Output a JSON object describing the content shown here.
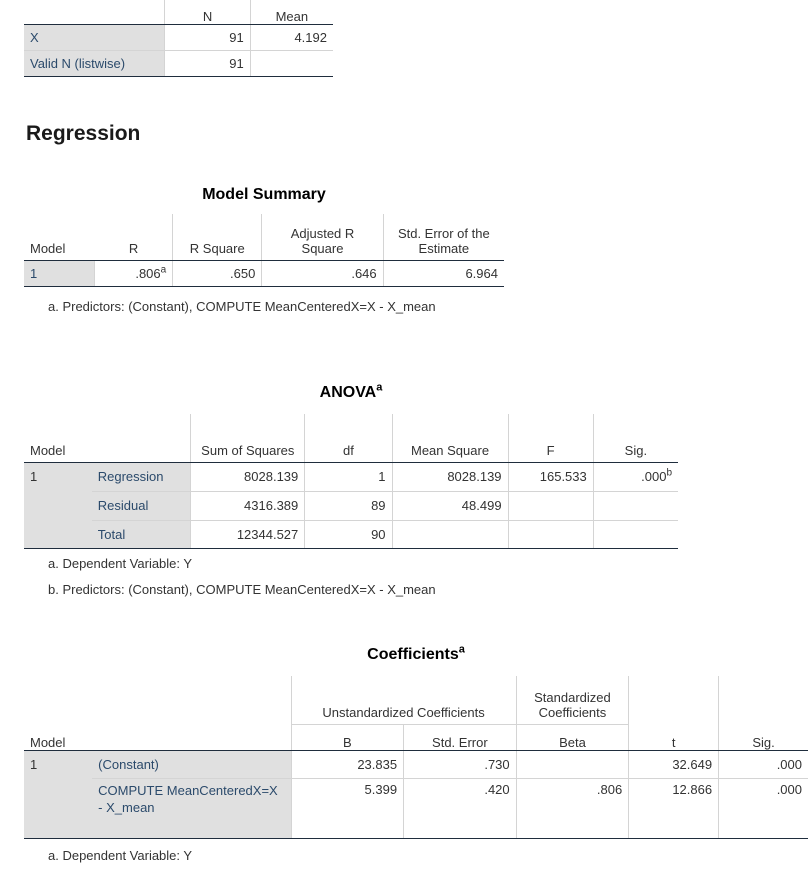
{
  "descriptives": {
    "headers": [
      "N",
      "Mean"
    ],
    "rows": [
      {
        "label": "X",
        "n": "91",
        "mean": "4.192"
      },
      {
        "label": "Valid N (listwise)",
        "n": "91",
        "mean": ""
      }
    ]
  },
  "section_title": "Regression",
  "model_summary": {
    "title": "Model Summary",
    "headers": {
      "model": "Model",
      "r": "R",
      "r_square": "R Square",
      "adj_r_square": "Adjusted R Square",
      "std_err": "Std. Error of the Estimate"
    },
    "row": {
      "model": "1",
      "r": ".806",
      "r_sup": "a",
      "r_square": ".650",
      "adj_r_square": ".646",
      "std_err": "6.964"
    },
    "footnote": "a. Predictors: (Constant), COMPUTE MeanCenteredX=X - X_mean"
  },
  "anova": {
    "title": "ANOVA",
    "title_sup": "a",
    "headers": {
      "model": "Model",
      "ss": "Sum of Squares",
      "df": "df",
      "ms": "Mean Square",
      "f": "F",
      "sig": "Sig."
    },
    "model": "1",
    "rows": [
      {
        "label": "Regression",
        "ss": "8028.139",
        "df": "1",
        "ms": "8028.139",
        "f": "165.533",
        "sig": ".000",
        "sig_sup": "b"
      },
      {
        "label": "Residual",
        "ss": "4316.389",
        "df": "89",
        "ms": "48.499",
        "f": "",
        "sig": "",
        "sig_sup": ""
      },
      {
        "label": "Total",
        "ss": "12344.527",
        "df": "90",
        "ms": "",
        "f": "",
        "sig": "",
        "sig_sup": ""
      }
    ],
    "footnotes": [
      "a. Dependent Variable: Y",
      "b. Predictors: (Constant), COMPUTE MeanCenteredX=X - X_mean"
    ]
  },
  "coefficients": {
    "title": "Coefficients",
    "title_sup": "a",
    "headers": {
      "unstd": "Unstandardized Coefficients",
      "std": "Standardized Coefficients",
      "model": "Model",
      "b": "B",
      "se": "Std. Error",
      "beta": "Beta",
      "t": "t",
      "sig": "Sig."
    },
    "model": "1",
    "rows": [
      {
        "label": "(Constant)",
        "b": "23.835",
        "se": ".730",
        "beta": "",
        "t": "32.649",
        "sig": ".000"
      },
      {
        "label": "COMPUTE MeanCenteredX=X - X_mean",
        "b": "5.399",
        "se": ".420",
        "beta": ".806",
        "t": "12.866",
        "sig": ".000"
      }
    ],
    "footnote": "a. Dependent Variable: Y"
  }
}
